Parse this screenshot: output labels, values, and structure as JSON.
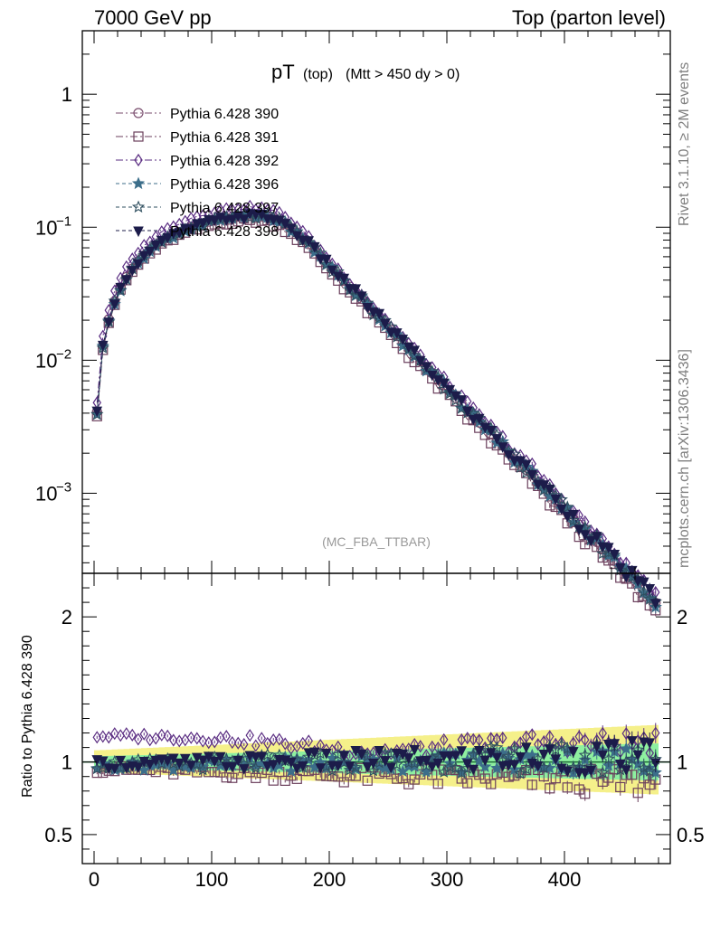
{
  "header": {
    "left": "7000 GeV pp",
    "right": "Top (parton level)"
  },
  "side_labels": {
    "rivet": "Rivet 3.1.10, ≥ 2M events",
    "mcplots": "mcplots.cern.ch [arXiv:1306.3436]"
  },
  "colors": {
    "s390": "#7a4e6e",
    "s391": "#6b3f5c",
    "s392": "#5a2d82",
    "s396": "#3c6e8a",
    "s397": "#2f4f5f",
    "s398": "#1c1c4a",
    "band_yellow": "#f5f08a",
    "band_green": "#8ef0a0",
    "ref_line": "#1f6b3a"
  },
  "chart_data": {
    "type": "line",
    "title": "pT (top) (Mtt > 450 dy > 0)",
    "title_main": "pT",
    "title_sub": "(top)",
    "title_cond": "(Mtt > 450 dy > 0)",
    "watermark": "(MC_FBA_TTBAR)",
    "xlabel": "",
    "ylabel": "",
    "ratio_ylabel": "Ratio to Pythia 6.428 390",
    "xlim": [
      -10,
      490
    ],
    "ylim": [
      0.00025,
      3
    ],
    "y_scale": "log",
    "ratio_ylim": [
      0.3,
      2.3
    ],
    "x_ticks": [
      0,
      100,
      200,
      300,
      400
    ],
    "x_tick_labels": [
      "0",
      "100",
      "200",
      "300",
      "400"
    ],
    "y_ticks": [
      0.001,
      0.01,
      0.1,
      1
    ],
    "y_tick_labels": [
      {
        "base": "10",
        "exp": "−3"
      },
      {
        "base": "10",
        "exp": "−2"
      },
      {
        "base": "10",
        "exp": "−1"
      },
      {
        "base": "1",
        "exp": ""
      }
    ],
    "ratio_ticks": [
      0.5,
      1,
      2
    ],
    "ratio_tick_labels": [
      "0.5",
      "1",
      "2"
    ],
    "legend_position": "top-left",
    "x": [
      2.5,
      7.5,
      12.5,
      17.5,
      22.5,
      27.5,
      32.5,
      37.5,
      42.5,
      47.5,
      52.5,
      57.5,
      62.5,
      67.5,
      72.5,
      77.5,
      82.5,
      87.5,
      92.5,
      97.5,
      102.5,
      107.5,
      112.5,
      117.5,
      122.5,
      127.5,
      132.5,
      137.5,
      142.5,
      147.5,
      152.5,
      157.5,
      162.5,
      167.5,
      172.5,
      177.5,
      182.5,
      187.5,
      192.5,
      197.5,
      202.5,
      207.5,
      212.5,
      217.5,
      222.5,
      227.5,
      232.5,
      237.5,
      242.5,
      247.5,
      252.5,
      257.5,
      262.5,
      267.5,
      272.5,
      277.5,
      282.5,
      287.5,
      292.5,
      297.5,
      302.5,
      307.5,
      312.5,
      317.5,
      322.5,
      327.5,
      332.5,
      337.5,
      342.5,
      347.5,
      352.5,
      357.5,
      362.5,
      367.5,
      372.5,
      377.5,
      382.5,
      387.5,
      392.5,
      397.5,
      402.5,
      407.5,
      412.5,
      417.5,
      422.5,
      427.5,
      432.5,
      437.5,
      442.5,
      447.5,
      452.5,
      457.5,
      462.5,
      467.5,
      472.5,
      477.5
    ],
    "reference": [
      0.0041,
      0.0129,
      0.0203,
      0.0278,
      0.035,
      0.0422,
      0.0488,
      0.0553,
      0.0614,
      0.0673,
      0.0729,
      0.0781,
      0.0831,
      0.0878,
      0.0921,
      0.0962,
      0.1001,
      0.1036,
      0.1069,
      0.11,
      0.1128,
      0.1153,
      0.1174,
      0.1192,
      0.1205,
      0.1214,
      0.1218,
      0.1216,
      0.1207,
      0.1192,
      0.1163,
      0.1118,
      0.1058,
      0.0986,
      0.0908,
      0.0826,
      0.0746,
      0.0671,
      0.0604,
      0.0544,
      0.049,
      0.0441,
      0.0397,
      0.0357,
      0.0321,
      0.0289,
      0.0259,
      0.0233,
      0.0209,
      0.0188,
      0.0169,
      0.0152,
      0.0137,
      0.0123,
      0.011,
      0.0099,
      0.0089,
      0.008,
      0.0072,
      0.0065,
      0.0058,
      0.0052,
      0.0047,
      0.0042,
      0.0038,
      0.0034,
      0.0031,
      0.0028,
      0.0025,
      0.0023,
      0.002,
      0.0018,
      0.0017,
      0.0015,
      0.0014,
      0.0012,
      0.0011,
      0.00099,
      0.00089,
      0.0008,
      0.00072,
      0.00065,
      0.00058,
      0.00053,
      0.00047,
      0.00043,
      0.00038,
      0.00035,
      0.00031,
      0.00028,
      0.00025,
      0.00023,
      0.00021,
      0.00019,
      0.00017,
      0.00015
    ],
    "band": {
      "inner": [
        0.96,
        1.04
      ],
      "outer": [
        0.93,
        1.08
      ]
    },
    "series": [
      {
        "name": "Pythia 6.428 390",
        "marker": "circle-open",
        "dash": "8,3,2,3",
        "ratio_mean": 1.0,
        "ratio_slope": 0.0,
        "ratio_noise": 0.0
      },
      {
        "name": "Pythia 6.428 391",
        "marker": "square-open",
        "dash": "8,3,2,3",
        "ratio_mean": 0.95,
        "ratio_slope": -0.0002,
        "ratio_noise": 0.025
      },
      {
        "name": "Pythia 6.428 392",
        "marker": "diamond-open",
        "dash": "8,3,2,3",
        "ratio_mean": 1.18,
        "ratio_slope": -0.0001,
        "ratio_noise": 0.02
      },
      {
        "name": "Pythia 6.428 396",
        "marker": "star-filled",
        "dash": "4,3",
        "ratio_mean": 0.97,
        "ratio_slope": 0.0001,
        "ratio_noise": 0.025
      },
      {
        "name": "Pythia 6.428 397",
        "marker": "star-open",
        "dash": "4,3",
        "ratio_mean": 0.98,
        "ratio_slope": 0.0001,
        "ratio_noise": 0.03
      },
      {
        "name": "Pythia 6.428 398",
        "marker": "triangle-down-filled",
        "dash": "4,3",
        "ratio_mean": 0.99,
        "ratio_slope": 0.0001,
        "ratio_noise": 0.03
      }
    ]
  }
}
